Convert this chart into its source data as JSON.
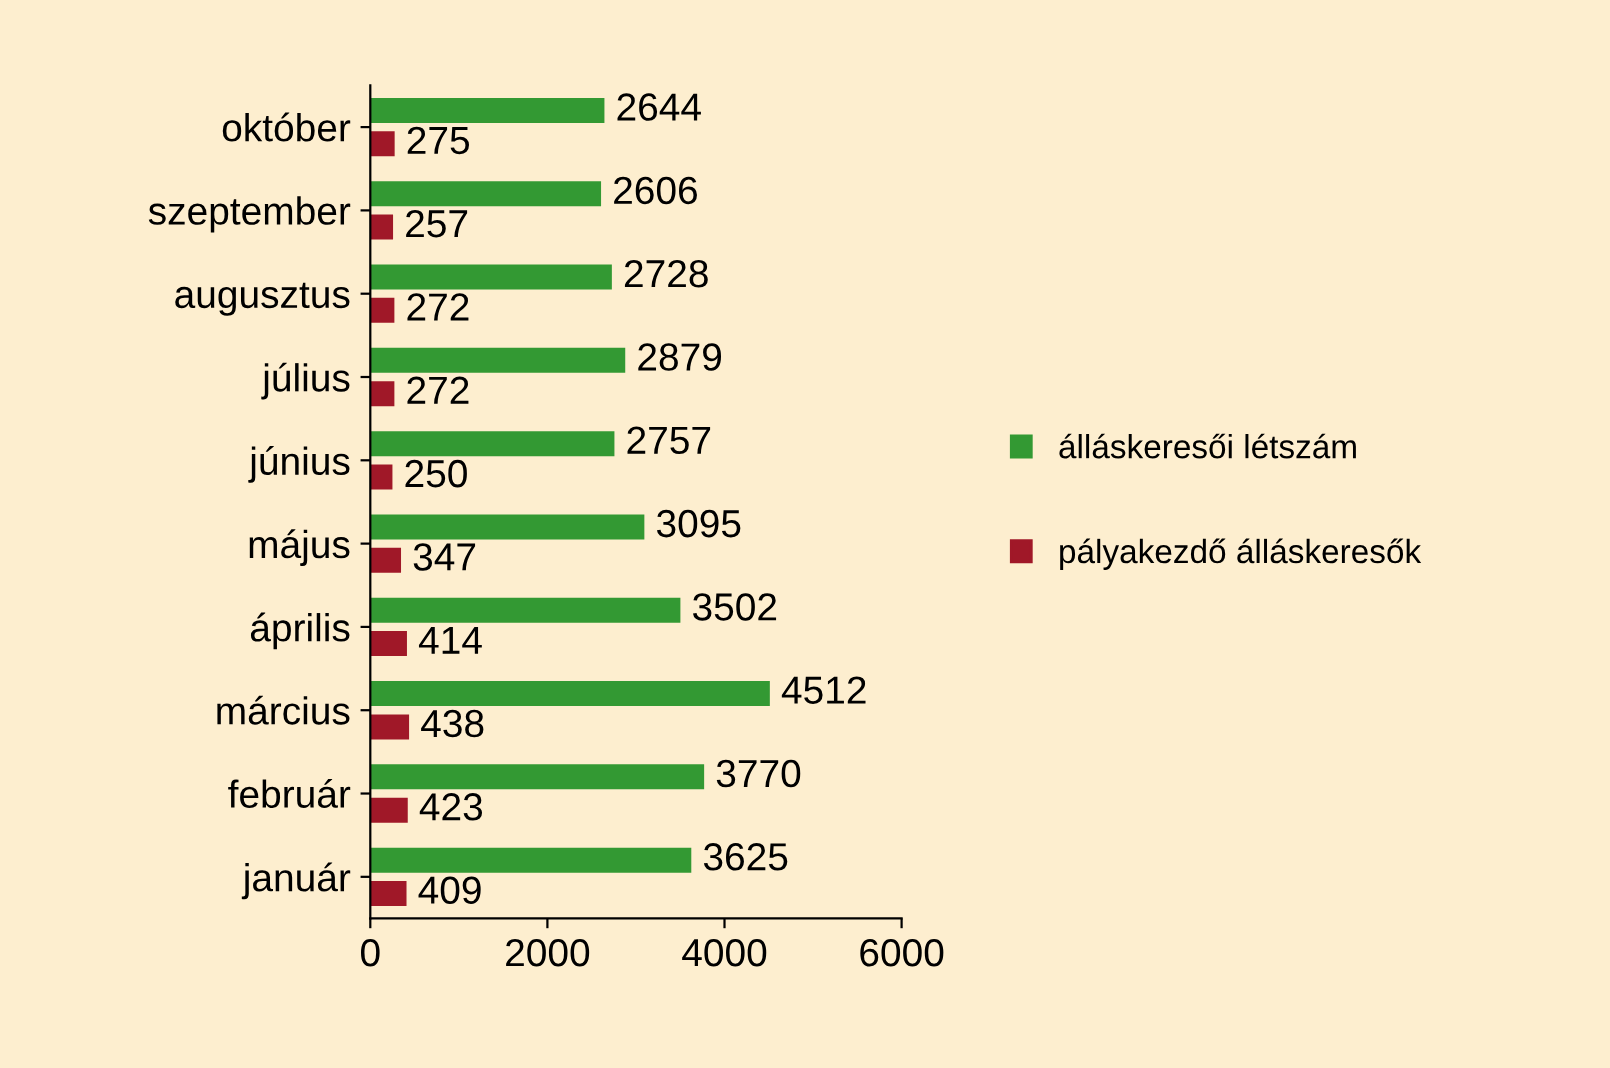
{
  "chart_data": {
    "type": "bar",
    "orientation": "horizontal",
    "categories": [
      "október",
      "szeptember",
      "augusztus",
      "július",
      "június",
      "május",
      "április",
      "március",
      "február",
      "január"
    ],
    "series": [
      {
        "name": "álláskeresői létszám",
        "color": "#339933",
        "values": [
          2644,
          2606,
          2728,
          2879,
          2757,
          3095,
          3502,
          4512,
          3770,
          3625
        ]
      },
      {
        "name": "pályakezdő álláskeresők",
        "color": "#a01828",
        "values": [
          275,
          257,
          272,
          272,
          250,
          347,
          414,
          438,
          423,
          409
        ]
      }
    ],
    "xlim": [
      0,
      6000
    ],
    "xticks": [
      0,
      2000,
      4000,
      6000
    ],
    "data_labels": true,
    "grid": false,
    "legend": "right"
  }
}
